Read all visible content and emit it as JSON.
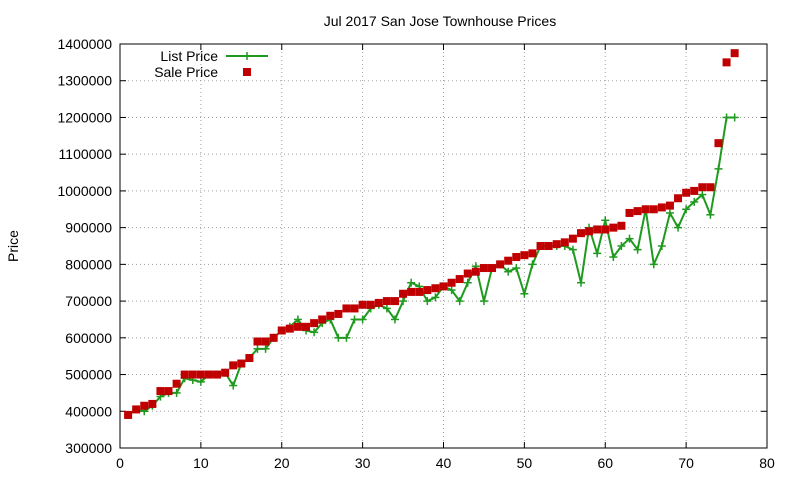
{
  "chart_data": {
    "type": "line",
    "title": "Jul 2017 San Jose Townhouse Prices",
    "xlabel": "",
    "ylabel": "Price",
    "xlim": [
      0,
      80
    ],
    "ylim": [
      300000,
      1400000
    ],
    "xticks": [
      0,
      10,
      20,
      30,
      40,
      50,
      60,
      70,
      80
    ],
    "yticks": [
      300000,
      400000,
      500000,
      600000,
      700000,
      800000,
      900000,
      1000000,
      1100000,
      1200000,
      1300000,
      1400000
    ],
    "grid": true,
    "legend_position": "top-left",
    "x": [
      1,
      2,
      3,
      4,
      5,
      6,
      7,
      8,
      9,
      10,
      11,
      12,
      13,
      14,
      15,
      16,
      17,
      18,
      19,
      20,
      21,
      22,
      23,
      24,
      25,
      26,
      27,
      28,
      29,
      30,
      31,
      32,
      33,
      34,
      35,
      36,
      37,
      38,
      39,
      40,
      41,
      42,
      43,
      44,
      45,
      46,
      47,
      48,
      49,
      50,
      51,
      52,
      53,
      54,
      55,
      56,
      57,
      58,
      59,
      60,
      61,
      62,
      63,
      64,
      65,
      66,
      67,
      68,
      69,
      70,
      71,
      72,
      73,
      74,
      75,
      76
    ],
    "series": [
      {
        "name": "List Price",
        "style": "linespoints",
        "color": "#1e9a1e",
        "values": [
          390000,
          405000,
          400000,
          415000,
          440000,
          450000,
          450000,
          490000,
          485000,
          480000,
          500000,
          500000,
          505000,
          470000,
          530000,
          545000,
          570000,
          570000,
          600000,
          620000,
          630000,
          650000,
          620000,
          615000,
          640000,
          650000,
          600000,
          600000,
          650000,
          650000,
          680000,
          690000,
          680000,
          650000,
          700000,
          750000,
          740000,
          700000,
          710000,
          740000,
          730000,
          700000,
          750000,
          795000,
          700000,
          790000,
          800000,
          780000,
          790000,
          720000,
          800000,
          850000,
          850000,
          850000,
          850000,
          840000,
          750000,
          900000,
          830000,
          920000,
          820000,
          850000,
          870000,
          840000,
          950000,
          800000,
          850000,
          940000,
          900000,
          950000,
          970000,
          990000,
          935000,
          1060000,
          1200000,
          1200000
        ]
      },
      {
        "name": "Sale Price",
        "style": "points",
        "color": "#c00000",
        "values": [
          390000,
          405000,
          415000,
          420000,
          455000,
          455000,
          475000,
          500000,
          500000,
          500000,
          500000,
          500000,
          505000,
          525000,
          530000,
          545000,
          590000,
          590000,
          600000,
          620000,
          625000,
          630000,
          630000,
          640000,
          650000,
          660000,
          665000,
          680000,
          680000,
          690000,
          690000,
          695000,
          700000,
          700000,
          720000,
          725000,
          725000,
          730000,
          735000,
          740000,
          750000,
          760000,
          775000,
          780000,
          790000,
          790000,
          800000,
          810000,
          820000,
          825000,
          830000,
          850000,
          850000,
          855000,
          860000,
          870000,
          885000,
          890000,
          895000,
          895000,
          900000,
          905000,
          940000,
          945000,
          950000,
          950000,
          955000,
          960000,
          980000,
          995000,
          1000000,
          1010000,
          1010000,
          1130000,
          1350000,
          1375000
        ]
      }
    ]
  }
}
